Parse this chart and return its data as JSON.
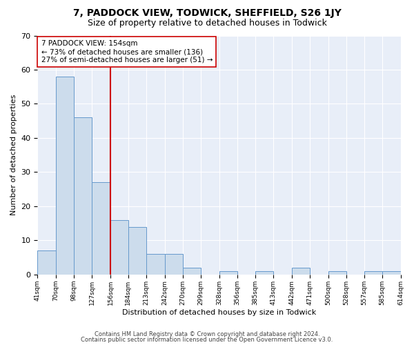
{
  "title": "7, PADDOCK VIEW, TODWICK, SHEFFIELD, S26 1JY",
  "subtitle": "Size of property relative to detached houses in Todwick",
  "xlabel": "Distribution of detached houses by size in Todwick",
  "ylabel": "Number of detached properties",
  "bin_labels": [
    "41sqm",
    "70sqm",
    "98sqm",
    "127sqm",
    "156sqm",
    "184sqm",
    "213sqm",
    "242sqm",
    "270sqm",
    "299sqm",
    "328sqm",
    "356sqm",
    "385sqm",
    "413sqm",
    "442sqm",
    "471sqm",
    "500sqm",
    "528sqm",
    "557sqm",
    "585sqm",
    "614sqm"
  ],
  "bin_edges": [
    41,
    70,
    98,
    127,
    156,
    184,
    213,
    242,
    270,
    299,
    328,
    356,
    385,
    413,
    442,
    471,
    500,
    528,
    557,
    585,
    614
  ],
  "bar_heights": [
    7,
    58,
    46,
    27,
    16,
    14,
    6,
    6,
    2,
    0,
    1,
    0,
    1,
    0,
    2,
    0,
    1,
    0,
    1,
    1
  ],
  "bar_color": "#ccdcec",
  "bar_edge_color": "#6699cc",
  "vline_x": 156,
  "vline_color": "#cc0000",
  "annotation_text": "7 PADDOCK VIEW: 154sqm\n← 73% of detached houses are smaller (136)\n27% of semi-detached houses are larger (51) →",
  "annotation_box_color": "white",
  "annotation_box_edge_color": "#cc0000",
  "ylim": [
    0,
    70
  ],
  "yticks": [
    0,
    10,
    20,
    30,
    40,
    50,
    60,
    70
  ],
  "background_color": "#e8eef8",
  "footer_line1": "Contains HM Land Registry data © Crown copyright and database right 2024.",
  "footer_line2": "Contains public sector information licensed under the Open Government Licence v3.0.",
  "title_fontsize": 10,
  "subtitle_fontsize": 9
}
